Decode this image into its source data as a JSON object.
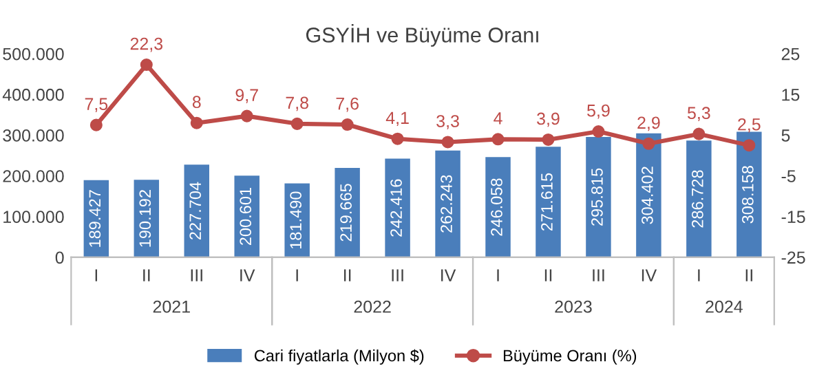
{
  "chart_data": {
    "type": "bar",
    "title": "GSYİH ve Büyüme Oranı",
    "categories": [
      "I",
      "II",
      "III",
      "IV",
      "I",
      "II",
      "III",
      "IV",
      "I",
      "II",
      "III",
      "IV",
      "I",
      "II"
    ],
    "annotations": [
      "2021",
      "2022",
      "2023",
      "2024"
    ],
    "series": [
      {
        "name": "Cari fiyatlarla (Milyon $)",
        "color": "#4a7ebb",
        "values": [
          189427,
          190192,
          227704,
          200601,
          181490,
          219665,
          242416,
          262243,
          246058,
          271615,
          295815,
          304402,
          286728,
          308158
        ],
        "value_labels": [
          "189.427",
          "190.192",
          "227.704",
          "200.601",
          "181.490",
          "219.665",
          "242.416",
          "262.243",
          "246.058",
          "271.615",
          "295.815",
          "304.402",
          "286.728",
          "308.158"
        ]
      },
      {
        "name": "Büyüme Oranı (%)",
        "type": "line",
        "axis": "y2",
        "color": "#be4b48",
        "marker": "circle",
        "values": [
          7.5,
          22.3,
          8,
          9.7,
          7.8,
          7.6,
          4.1,
          3.3,
          4,
          3.9,
          5.9,
          2.9,
          5.3,
          2.5
        ],
        "value_labels": [
          "7,5",
          "22,3",
          "8",
          "9,7",
          "7,8",
          "7,6",
          "4,1",
          "3,3",
          "4",
          "3,9",
          "5,9",
          "2,9",
          "5,3",
          "2,5"
        ]
      }
    ],
    "ylim": [
      0,
      500000
    ],
    "yticks": [
      0,
      {
        "value": 100000,
        "label": "100.000"
      },
      {
        "value": 200000,
        "label": "200.000"
      },
      {
        "value": 300000,
        "label": "300.000"
      },
      {
        "value": 400000,
        "label": "400.000"
      },
      {
        "value": 500000,
        "label": "500.000"
      }
    ],
    "y2lim": [
      -25,
      25
    ],
    "y2ticks": [
      -25,
      -15,
      -5,
      5,
      15,
      25
    ],
    "grid": false,
    "legend": "bottom"
  }
}
